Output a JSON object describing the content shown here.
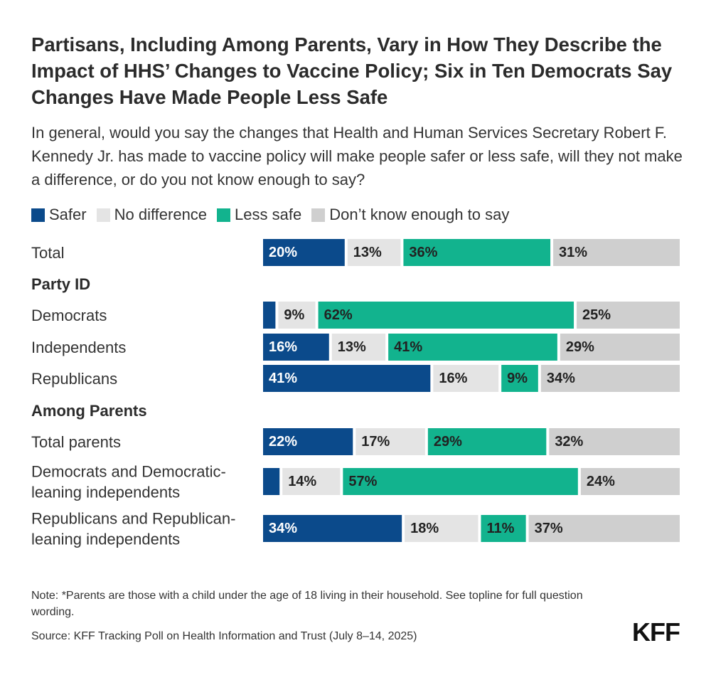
{
  "chart_data": {
    "type": "bar",
    "orientation": "horizontal",
    "stacked": true,
    "title": "Partisans, Including Among Parents, Vary in How They Describe the Impact of HHS’ Changes to Vaccine Policy; Six in Ten Democrats Say Changes Have Made People Less Safe",
    "subtitle": "In general, would you say the changes that Health and Human Services Secretary Robert F. Kennedy Jr. has made to vaccine policy will make people safer or less safe, will they not make a difference, or do you not know enough to say?",
    "series": [
      {
        "name": "Safer",
        "color": "#0b4a8b",
        "label_color": "#ffffff"
      },
      {
        "name": "No difference",
        "color": "#e4e4e4",
        "label_color": "#222222"
      },
      {
        "name": "Less safe",
        "color": "#12b38e",
        "label_color": "#222222"
      },
      {
        "name": "Don’t know enough to say",
        "color": "#cfcfcf",
        "label_color": "#222222"
      }
    ],
    "rows": [
      {
        "kind": "bar",
        "label": [
          "Total"
        ],
        "values": [
          20,
          13,
          36,
          31
        ],
        "labels": [
          "20%",
          "13%",
          "36%",
          "31%"
        ]
      },
      {
        "kind": "group",
        "label": [
          "Party ID"
        ]
      },
      {
        "kind": "bar",
        "label": [
          "Democrats"
        ],
        "values": [
          3,
          9,
          62,
          25
        ],
        "labels": [
          "",
          "9%",
          "62%",
          "25%"
        ]
      },
      {
        "kind": "bar",
        "label": [
          "Independents"
        ],
        "values": [
          16,
          13,
          41,
          29
        ],
        "labels": [
          "16%",
          "13%",
          "41%",
          "29%"
        ]
      },
      {
        "kind": "bar",
        "label": [
          "Republicans"
        ],
        "values": [
          41,
          16,
          9,
          34
        ],
        "labels": [
          "41%",
          "16%",
          "9%",
          "34%"
        ]
      },
      {
        "kind": "group",
        "label": [
          "Among Parents"
        ]
      },
      {
        "kind": "bar",
        "label": [
          "Total parents"
        ],
        "values": [
          22,
          17,
          29,
          32
        ],
        "labels": [
          "22%",
          "17%",
          "29%",
          "32%"
        ]
      },
      {
        "kind": "bar",
        "label": [
          "Democrats and Democratic-",
          "leaning independents"
        ],
        "values": [
          4,
          14,
          57,
          24
        ],
        "labels": [
          "",
          "14%",
          "57%",
          "24%"
        ]
      },
      {
        "kind": "bar",
        "label": [
          "Republicans and Republican-",
          "leaning independents"
        ],
        "values": [
          34,
          18,
          11,
          37
        ],
        "labels": [
          "34%",
          "18%",
          "11%",
          "37%"
        ]
      }
    ]
  },
  "footer": {
    "note": "Note: *Parents are those with a child under the age of 18 living in their household. See topline for full question wording.",
    "source": "Source: KFF Tracking Poll on Health Information and Trust (July 8–14, 2025)",
    "logo": "KFF"
  }
}
